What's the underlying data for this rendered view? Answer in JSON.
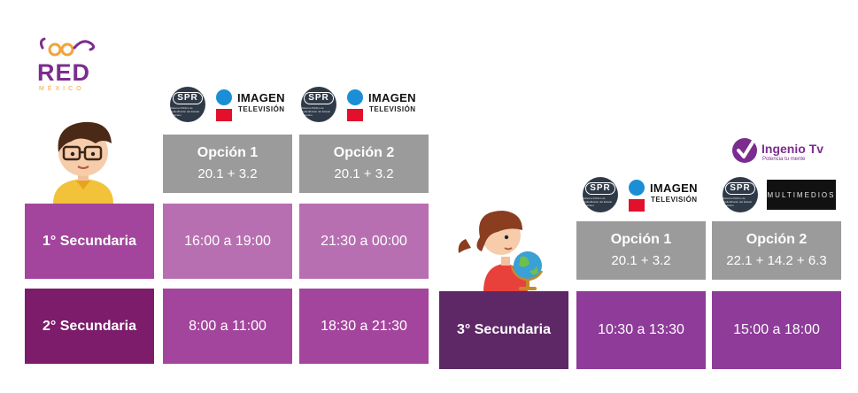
{
  "logo": {
    "name": "RED",
    "country": "MÉXICO",
    "primary_color": "#7b2d8e",
    "accent_color": "#f3a33a"
  },
  "channels": {
    "spr_label": "SPR",
    "spr_sub": "Sistema Público de Radiodifusión del Estado Mexicano",
    "imagen_name": "IMAGEN",
    "imagen_sub": "TELEVISIÓN",
    "ingenio_name": "Ingenio Tv",
    "ingenio_tagline": "Potencia tu mente",
    "multimedios": "MULTIMEDIOS"
  },
  "left_table": {
    "options": [
      {
        "title": "Opción 1",
        "channels": "20.1  +  3.2"
      },
      {
        "title": "Opción 2",
        "channels": "20.1  +  3.2"
      }
    ],
    "rows": [
      {
        "grade": "1° Secundaria",
        "times": [
          "16:00 a 19:00",
          "21:30 a 00:00"
        ]
      },
      {
        "grade": "2° Secundaria",
        "times": [
          "8:00 a 11:00",
          "18:30 a 21:30"
        ]
      }
    ]
  },
  "right_table": {
    "options": [
      {
        "title": "Opción 1",
        "channels": "20.1  +  3.2"
      },
      {
        "title": "Opción 2",
        "channels": "22.1 + 14.2  + 6.3"
      }
    ],
    "rows": [
      {
        "grade": "3° Secundaria",
        "times": [
          "10:30 a 13:30",
          "15:00 a 18:00"
        ]
      }
    ]
  },
  "colors": {
    "gray_header": "#9c9b9c",
    "row1_grade": "#a3459c",
    "row1_cell": "#b86fb2",
    "row2_grade": "#7c1c6b",
    "row2_cell": "#a3459c",
    "row3_grade": "#5e2866",
    "row3_cell": "#8e3b99"
  },
  "icons": {
    "boy": "boy-character-icon",
    "girl": "girl-with-globe-icon",
    "check": "ingenio-check-icon"
  }
}
